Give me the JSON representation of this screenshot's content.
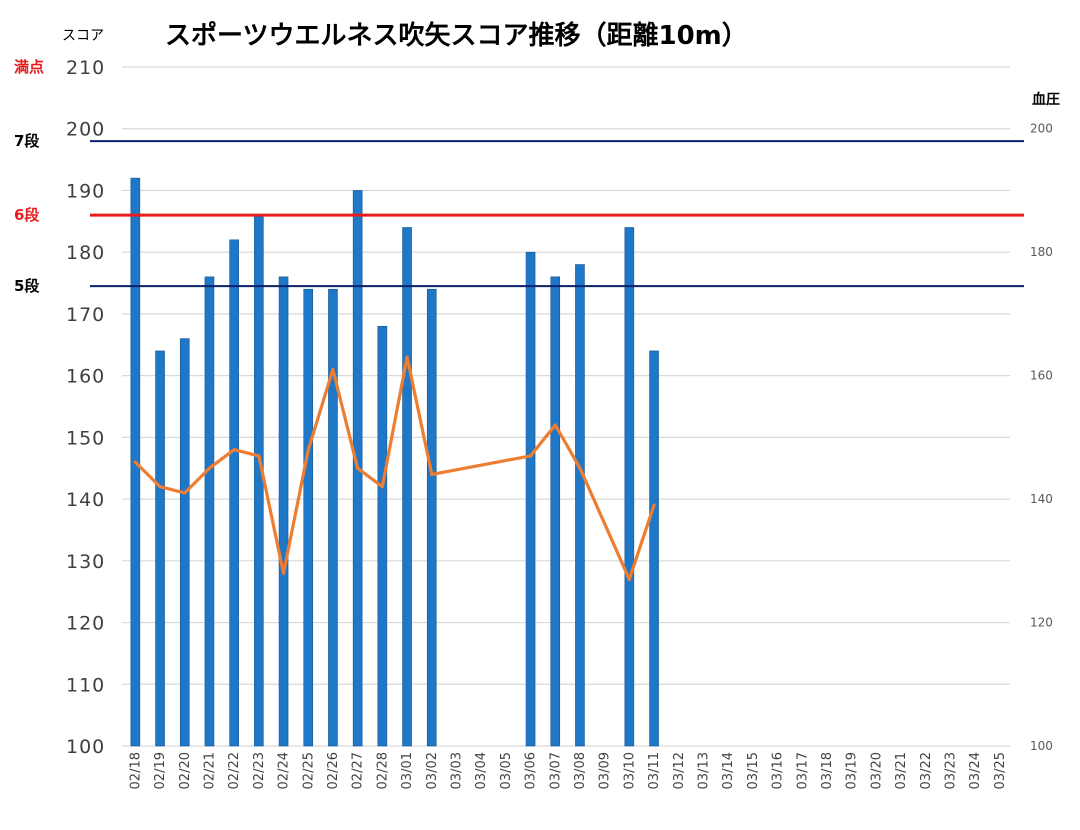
{
  "chart_data": {
    "type": "bar",
    "title": "スポーツウエルネス吹矢スコア推移（距離10m）",
    "ylabel": "スコア",
    "y2label": "血圧",
    "ylim": [
      100,
      210
    ],
    "y2lim": [
      100,
      210
    ],
    "yticks": [
      "100",
      "110",
      "120",
      "130",
      "140",
      "150",
      "160",
      "170",
      "180",
      "190",
      "200",
      "210"
    ],
    "y2ticks": [
      "100",
      "120",
      "140",
      "160",
      "180",
      "200"
    ],
    "grid": true,
    "categories": [
      "02/18",
      "02/19",
      "02/20",
      "02/21",
      "02/22",
      "02/23",
      "02/24",
      "02/25",
      "02/26",
      "02/27",
      "02/28",
      "03/01",
      "03/02",
      "03/03",
      "03/04",
      "03/05",
      "03/06",
      "03/07",
      "03/08",
      "03/09",
      "03/10",
      "03/11",
      "03/12",
      "03/13",
      "03/14",
      "03/15",
      "03/16",
      "03/17",
      "03/18",
      "03/19",
      "03/20",
      "03/21",
      "03/22",
      "03/23",
      "03/24",
      "03/25"
    ],
    "series": [
      {
        "kind": "bar",
        "axis": "left",
        "color": "#1f77c8",
        "values": [
          192,
          164,
          166,
          176,
          182,
          186,
          176,
          174,
          174,
          190,
          168,
          184,
          174,
          null,
          null,
          null,
          180,
          176,
          178,
          null,
          184,
          164,
          null,
          null,
          null,
          null,
          null,
          null,
          null,
          null,
          null,
          null,
          null,
          null,
          null,
          null
        ]
      },
      {
        "kind": "line",
        "axis": "right",
        "color": "#ed7d31",
        "values": [
          146,
          142,
          141,
          145,
          148,
          147,
          128,
          148,
          161,
          145,
          142,
          163,
          144,
          null,
          null,
          null,
          147,
          152,
          145,
          null,
          127,
          139,
          null,
          null,
          null,
          null,
          null,
          null,
          null,
          null,
          null,
          null,
          null,
          null,
          null,
          null
        ]
      }
    ],
    "reference_lines": [
      {
        "label": "満点",
        "value": 210,
        "color": "#e81c1c",
        "draw_line": false
      },
      {
        "label": "7段",
        "value": 198,
        "color": "#000000",
        "line_color": "#0b1f6b",
        "draw_line": true
      },
      {
        "label": "6段",
        "value": 186,
        "color": "#e81c1c",
        "line_color": "#e81c1c",
        "draw_line": true
      },
      {
        "label": "5段",
        "value": 174.5,
        "color": "#000000",
        "line_color": "#0b1f6b",
        "draw_line": true
      }
    ]
  }
}
